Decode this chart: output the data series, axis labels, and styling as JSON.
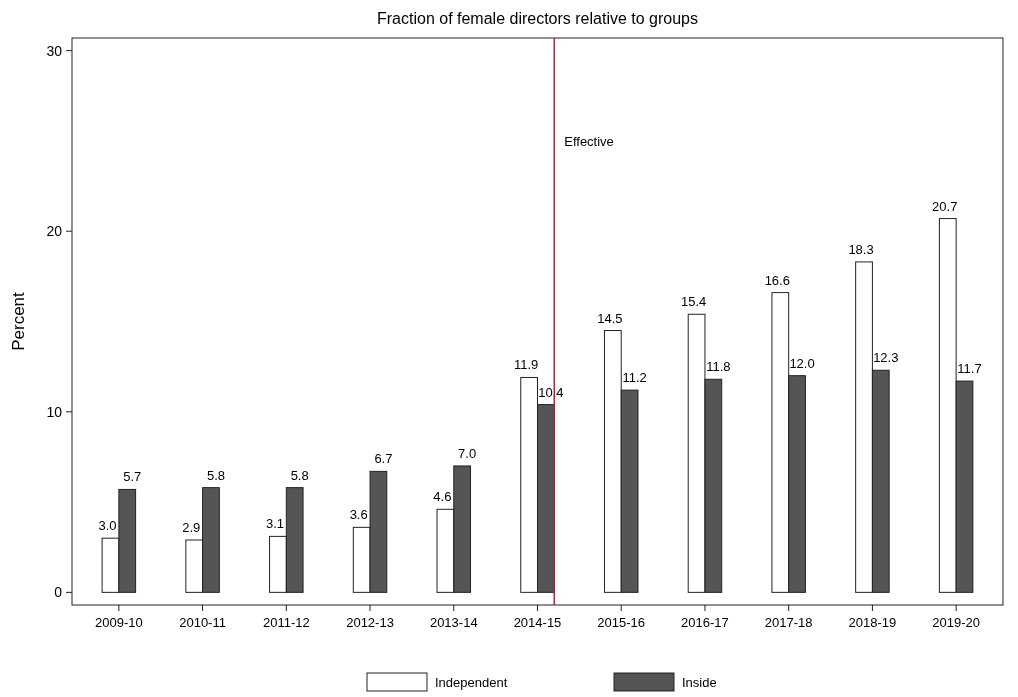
{
  "chart_data": {
    "type": "bar",
    "title": "Fraction of female directors relative to groups",
    "ylabel": "Percent",
    "categories": [
      "2009-10",
      "2010-11",
      "2011-12",
      "2012-13",
      "2013-14",
      "2014-15",
      "2015-16",
      "2016-17",
      "2017-18",
      "2018-19",
      "2019-20"
    ],
    "series": [
      {
        "name": "Independent",
        "color": "#ffffff",
        "values": [
          3.0,
          2.9,
          3.1,
          3.6,
          4.6,
          11.9,
          14.5,
          15.4,
          16.6,
          18.3,
          20.7
        ],
        "value_labels": [
          "3.0",
          "2.9",
          "3.1",
          "3.6",
          "4.6",
          "11.9",
          "14.5",
          "15.4",
          "16.6",
          "18.3",
          "20.7"
        ]
      },
      {
        "name": "Inside",
        "color": "#555555",
        "values": [
          5.7,
          5.8,
          5.8,
          6.7,
          7.0,
          10.4,
          11.2,
          11.8,
          12.0,
          12.3,
          11.7
        ],
        "value_labels": [
          "5.7",
          "5.8",
          "5.8",
          "6.7",
          "7.0",
          "10.4",
          "11.2",
          "11.8",
          "12.0",
          "12.3",
          "11.7"
        ]
      }
    ],
    "ylim": [
      -0.7,
      30.7
    ],
    "yticks": [
      0,
      10,
      20,
      30
    ],
    "grid": false,
    "legend": "bottom",
    "data_labels": true,
    "ref_lines": [
      {
        "axis": "x",
        "value": "2014-15",
        "label": "Effective",
        "color": "#a03040"
      }
    ]
  }
}
